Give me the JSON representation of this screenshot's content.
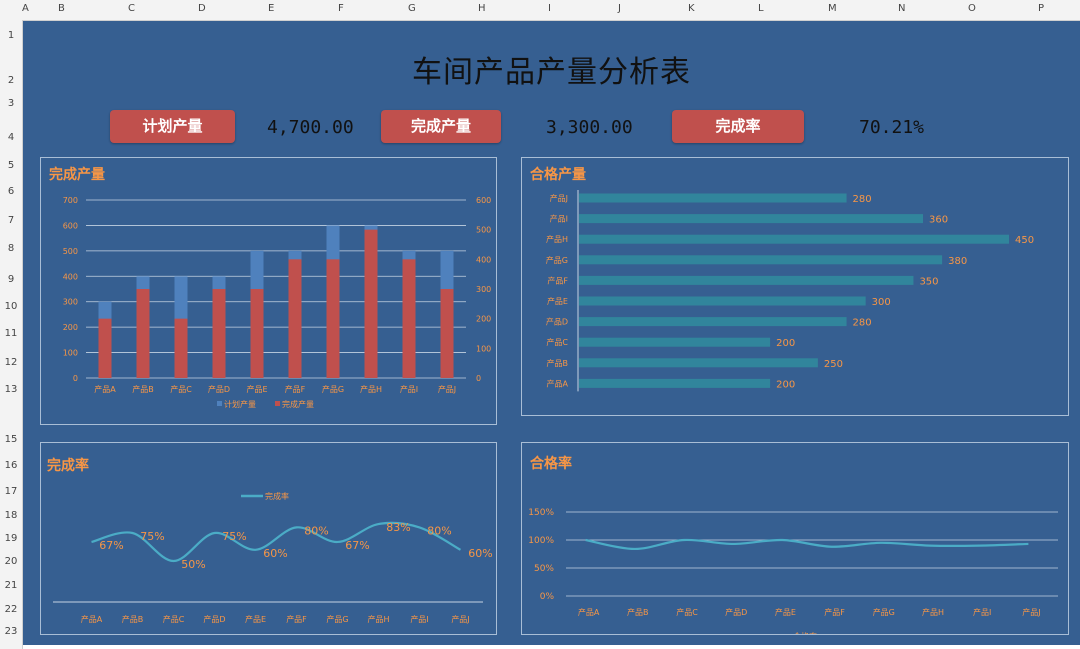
{
  "spreadsheet": {
    "columns": [
      "A",
      "B",
      "C",
      "D",
      "E",
      "F",
      "G",
      "H",
      "I",
      "J",
      "K",
      "L",
      "M",
      "N",
      "O",
      "P"
    ],
    "rows": [
      "1",
      "2",
      "3",
      "4",
      "5",
      "6",
      "7",
      "8",
      "9",
      "10",
      "11",
      "12",
      "13",
      "15",
      "16",
      "17",
      "18",
      "19",
      "20",
      "21",
      "22",
      "23"
    ]
  },
  "title": "车间产品产量分析表",
  "kpis": {
    "plan_label": "计划产量",
    "plan_value": "4,700.00",
    "done_label": "完成产量",
    "done_value": "3,300.00",
    "rate_label": "完成率",
    "rate_value": "70.21%"
  },
  "colors": {
    "background": "#365f91",
    "accent": "#f79646",
    "plan_series": "#4f81bd",
    "done_series": "#c0504d",
    "bar_teal": "#31859c",
    "line": "#4bacc6"
  },
  "chart_data": [
    {
      "type": "bar",
      "title": "完成产量",
      "categories": [
        "产品A",
        "产品B",
        "产品C",
        "产品D",
        "产品E",
        "产品F",
        "产品G",
        "产品H",
        "产品I",
        "产品J"
      ],
      "series": [
        {
          "name": "计划产量",
          "values": [
            300,
            400,
            400,
            400,
            500,
            500,
            600,
            600,
            500,
            500
          ]
        },
        {
          "name": "完成产量",
          "values": [
            200,
            300,
            200,
            300,
            300,
            400,
            400,
            500,
            400,
            300
          ]
        }
      ],
      "ylim_left": [
        0,
        700
      ],
      "yticks_left": [
        "0",
        "100",
        "200",
        "300",
        "400",
        "500",
        "600",
        "700"
      ],
      "ylim_right": [
        0,
        600
      ],
      "yticks_right": [
        "0",
        "100",
        "200",
        "300",
        "400",
        "500",
        "600"
      ],
      "legend": "bottom",
      "grid": true
    },
    {
      "type": "bar",
      "orientation": "horizontal",
      "title": "合格产量",
      "categories": [
        "产品J",
        "产品I",
        "产品H",
        "产品G",
        "产品F",
        "产品E",
        "产品D",
        "产品C",
        "产品B",
        "产品A"
      ],
      "values": [
        280,
        360,
        450,
        380,
        350,
        300,
        280,
        200,
        250,
        200
      ],
      "xlim": [
        0,
        450
      ]
    },
    {
      "type": "line",
      "title": "完成率",
      "categories": [
        "产品A",
        "产品B",
        "产品C",
        "产品D",
        "产品E",
        "产品F",
        "产品G",
        "产品H",
        "产品I",
        "产品J"
      ],
      "series": [
        {
          "name": "完成率",
          "values": [
            67,
            75,
            50,
            75,
            60,
            80,
            67,
            83,
            80,
            60
          ]
        }
      ],
      "labels": [
        "67%",
        "75%",
        "50%",
        "75%",
        "60%",
        "80%",
        "67%",
        "83%",
        "80%",
        "60%"
      ],
      "legend": "top",
      "ylim": [
        0,
        100
      ]
    },
    {
      "type": "line",
      "title": "合格率",
      "categories": [
        "产品A",
        "产品B",
        "产品C",
        "产品D",
        "产品E",
        "产品F",
        "产品G",
        "产品H",
        "产品I",
        "产品J"
      ],
      "series": [
        {
          "name": "合格率",
          "values": [
            100,
            84,
            100,
            93,
            100,
            88,
            95,
            90,
            90,
            93
          ]
        }
      ],
      "ylim": [
        0,
        150
      ],
      "yticks": [
        "0%",
        "50%",
        "100%",
        "150%"
      ],
      "legend": "bottom",
      "grid": true
    }
  ]
}
